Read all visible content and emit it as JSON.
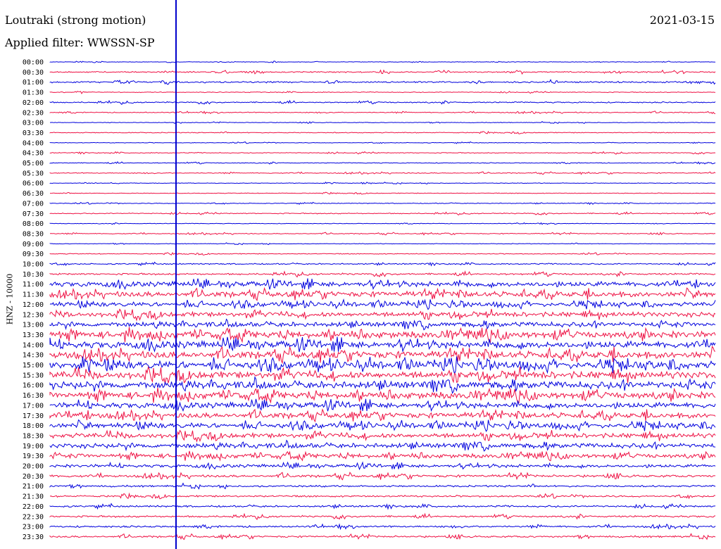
{
  "header": {
    "station": "Loutraki (strong motion)",
    "filter_label": "Applied filter: WWSSN-SP",
    "date": "2021-03-15"
  },
  "colors": {
    "trace_a": "#0000dd",
    "trace_b": "#ee1144",
    "marker": "#0000cc"
  },
  "chart_data": {
    "type": "line",
    "title": "Loutraki (strong motion)",
    "ylabel": "HNZ - 10000",
    "rows": [
      "00:00",
      "00:30",
      "01:00",
      "01:30",
      "02:00",
      "02:30",
      "03:00",
      "03:30",
      "04:00",
      "04:30",
      "05:00",
      "05:30",
      "06:00",
      "06:30",
      "07:00",
      "07:30",
      "08:00",
      "08:30",
      "09:00",
      "09:30",
      "10:00",
      "10:30",
      "11:00",
      "11:30",
      "12:00",
      "12:30",
      "13:00",
      "13:30",
      "14:00",
      "14:30",
      "15:00",
      "15:30",
      "16:00",
      "16:30",
      "17:00",
      "17:30",
      "18:00",
      "18:30",
      "19:00",
      "19:30",
      "20:00",
      "20:30",
      "21:00",
      "21:30",
      "22:00",
      "22:30",
      "23:00",
      "23:30"
    ],
    "relative_amplitude": [
      0.9,
      2,
      2.5,
      1.3,
      2,
      1.5,
      1,
      1.4,
      1,
      1.4,
      1.3,
      1.4,
      1,
      1.1,
      1.2,
      1.6,
      1,
      1.4,
      1,
      1.4,
      2,
      3,
      8,
      9,
      7,
      8,
      8,
      11,
      11,
      12,
      12,
      12,
      12,
      11,
      9,
      9,
      8,
      8,
      8,
      7,
      5,
      4,
      3,
      3,
      3,
      3,
      3,
      3
    ],
    "colors_alternate": [
      "blue",
      "red"
    ]
  }
}
